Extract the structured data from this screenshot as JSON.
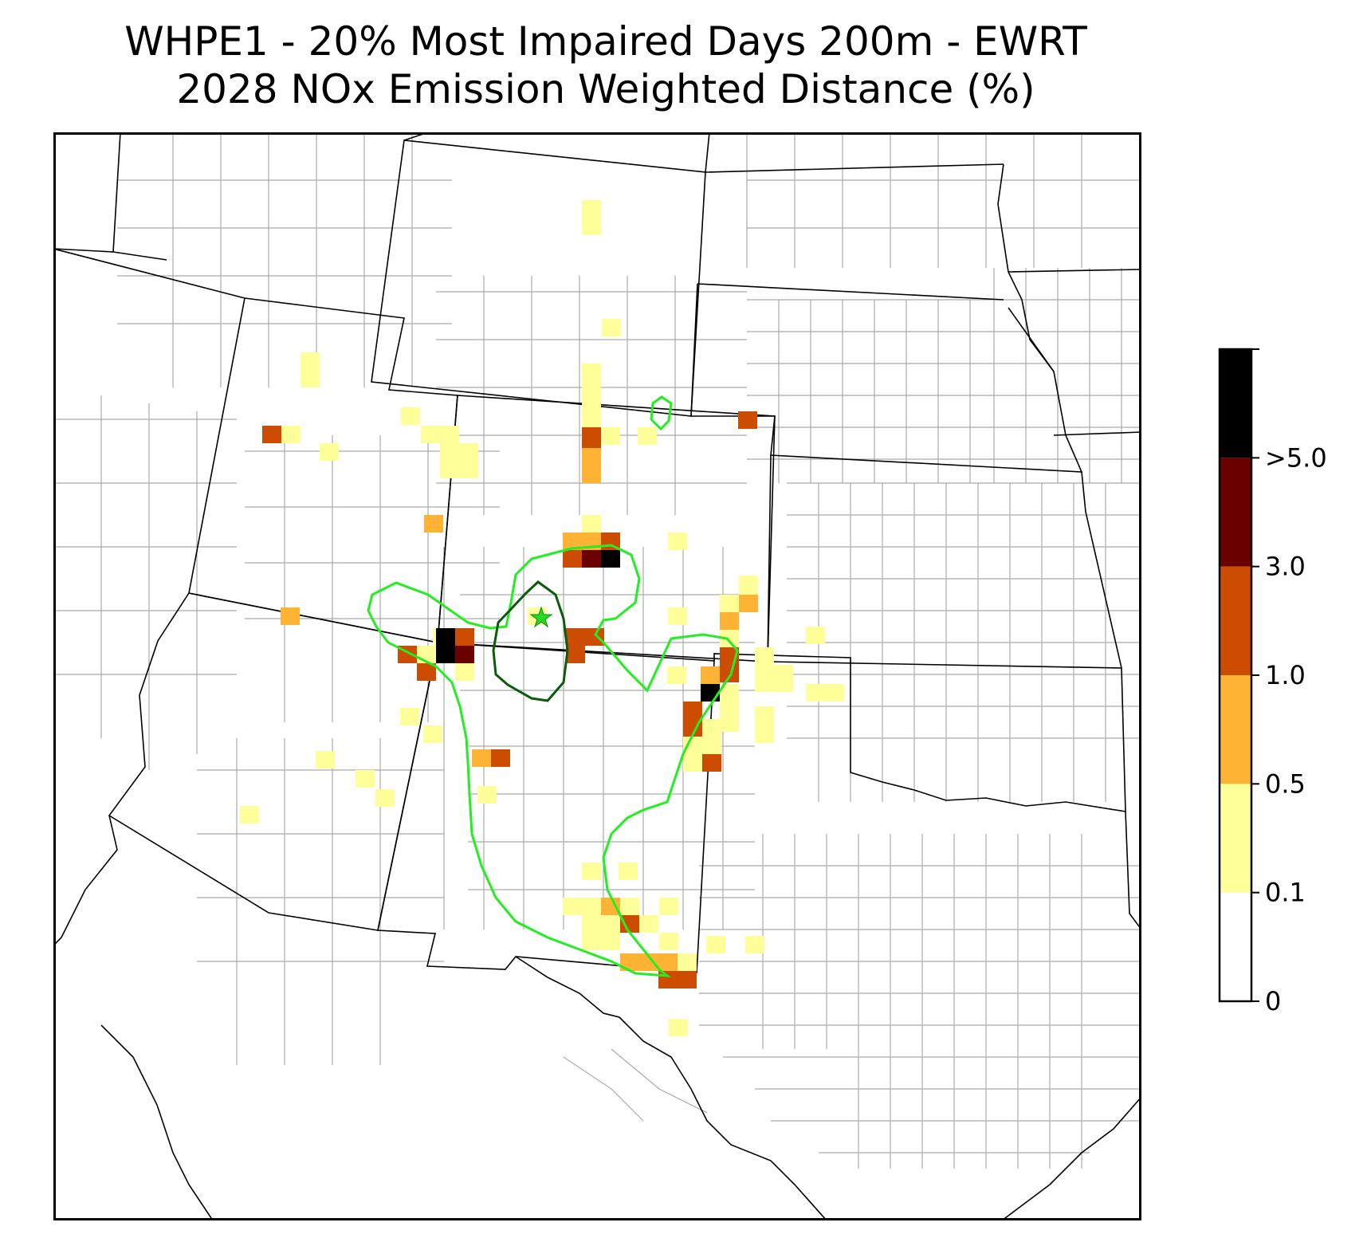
{
  "title": {
    "line1": "WHPE1 - 20% Most Impaired Days 200m - EWRT",
    "line2": "2028 NOx Emission Weighted Distance (%)"
  },
  "colorbar": {
    "colors": [
      "#ffffff",
      "#ffff9a",
      "#ffb334",
      "#cc4c02",
      "#6a0000",
      "#000000"
    ],
    "tick_labels": [
      "0",
      "0.1",
      "0.5",
      "1.0",
      "3.0",
      ">5.0"
    ]
  },
  "map": {
    "receptor_marker_color": "#22dd22",
    "contour_outer_color": "#22ee22",
    "contour_inner_color": "#0a5c0a",
    "state_line_color": "#000000",
    "county_line_color": "#aaaaaa"
  }
}
